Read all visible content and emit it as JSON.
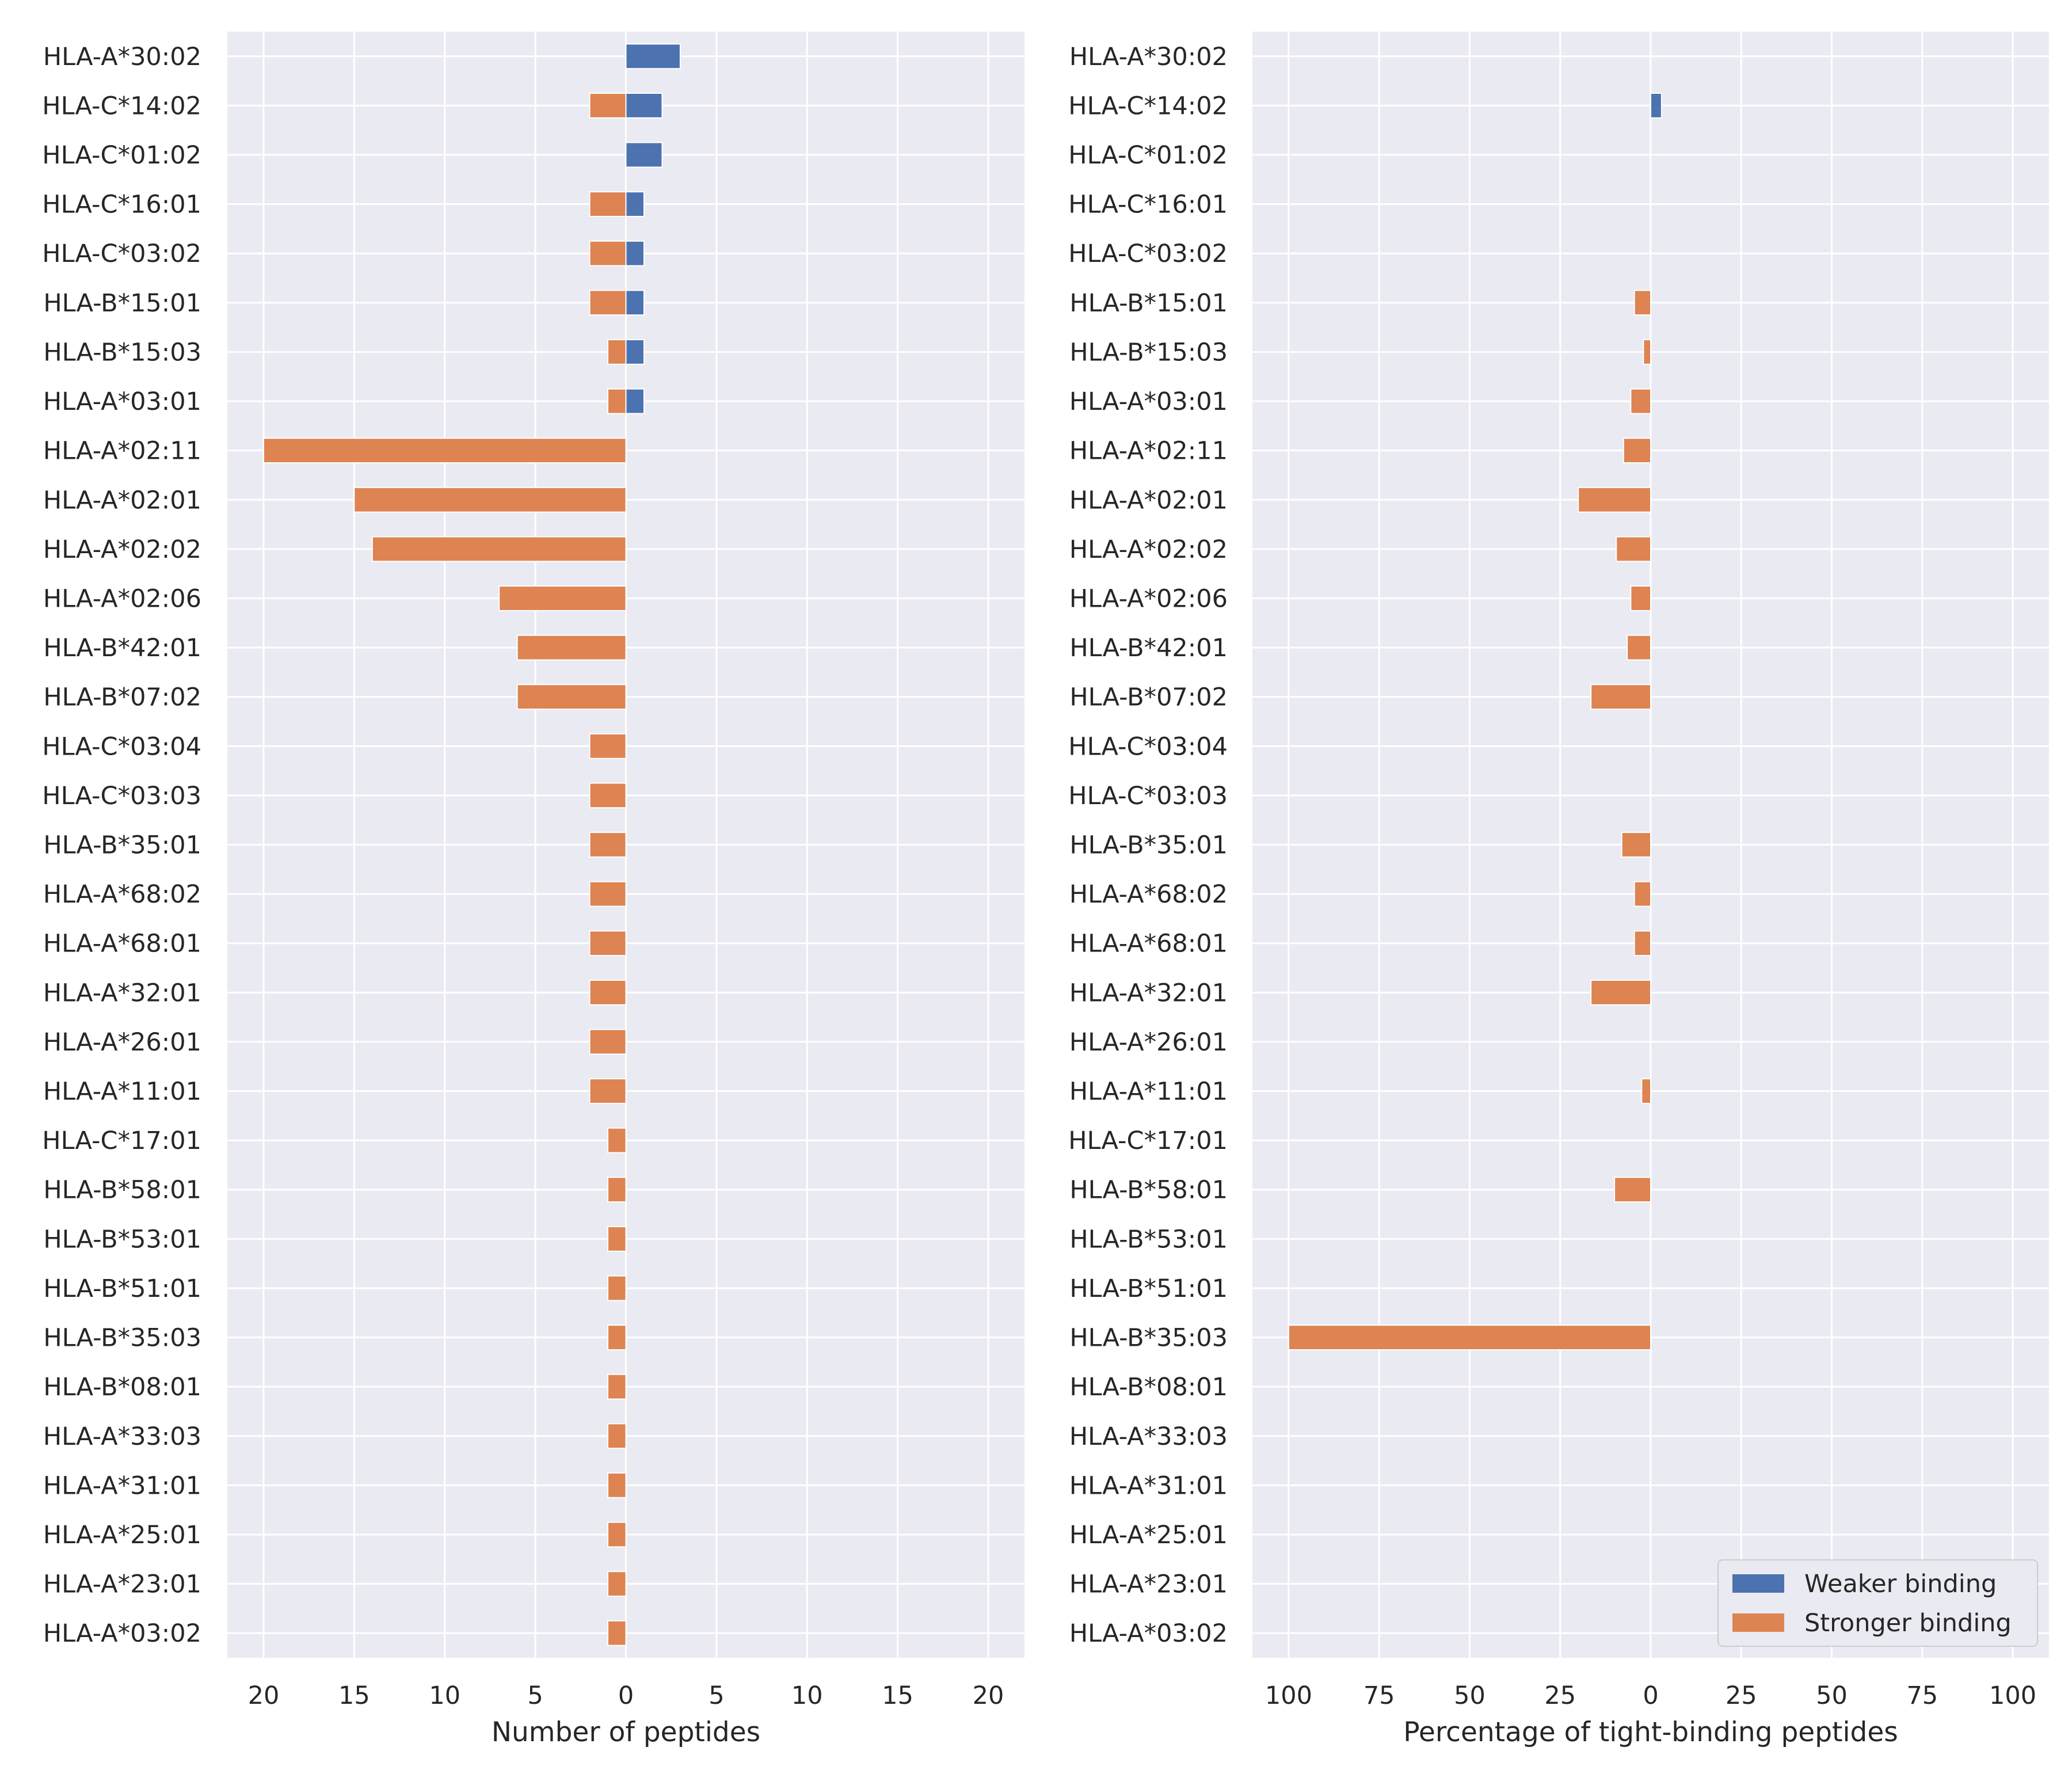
{
  "colors": {
    "weaker": "#4c72b0",
    "stronger": "#dd8452",
    "plot_background": "#eaeaf2",
    "grid": "#ffffff",
    "text": "#262626"
  },
  "legend": {
    "weaker_label": "Weaker binding",
    "stronger_label": "Stronger binding",
    "placement": "lower-right of right panel"
  },
  "chart_data": [
    {
      "type": "bar",
      "orientation": "horizontal",
      "layout": "diverging (stronger binding plotted to the left of 0, weaker binding to the right; tick labels shown as absolute values)",
      "xlabel": "Number of peptides",
      "xlim": [
        -22,
        22
      ],
      "xticks": [
        -20,
        -15,
        -10,
        -5,
        0,
        5,
        10,
        15,
        20
      ],
      "xtick_labels": [
        "20",
        "15",
        "10",
        "5",
        "0",
        "5",
        "10",
        "15",
        "20"
      ],
      "grid": true,
      "categories": [
        "HLA-A*30:02",
        "HLA-C*14:02",
        "HLA-C*01:02",
        "HLA-C*16:01",
        "HLA-C*03:02",
        "HLA-B*15:01",
        "HLA-B*15:03",
        "HLA-A*03:01",
        "HLA-A*02:11",
        "HLA-A*02:01",
        "HLA-A*02:02",
        "HLA-A*02:06",
        "HLA-B*42:01",
        "HLA-B*07:02",
        "HLA-C*03:04",
        "HLA-C*03:03",
        "HLA-B*35:01",
        "HLA-A*68:02",
        "HLA-A*68:01",
        "HLA-A*32:01",
        "HLA-A*26:01",
        "HLA-A*11:01",
        "HLA-C*17:01",
        "HLA-B*58:01",
        "HLA-B*53:01",
        "HLA-B*51:01",
        "HLA-B*35:03",
        "HLA-B*08:01",
        "HLA-A*33:03",
        "HLA-A*31:01",
        "HLA-A*25:01",
        "HLA-A*23:01",
        "HLA-A*03:02"
      ],
      "series": [
        {
          "name": "Weaker binding",
          "values": [
            3,
            2,
            2,
            1,
            1,
            1,
            1,
            1,
            0,
            0,
            0,
            0,
            0,
            0,
            0,
            0,
            0,
            0,
            0,
            0,
            0,
            0,
            0,
            0,
            0,
            0,
            0,
            0,
            0,
            0,
            0,
            0,
            0
          ]
        },
        {
          "name": "Stronger binding",
          "values": [
            0,
            2,
            0,
            2,
            2,
            2,
            1,
            1,
            20,
            15,
            14,
            7,
            6,
            6,
            2,
            2,
            2,
            2,
            2,
            2,
            2,
            2,
            1,
            1,
            1,
            1,
            1,
            1,
            1,
            1,
            1,
            1,
            1
          ]
        }
      ]
    },
    {
      "type": "bar",
      "orientation": "horizontal",
      "layout": "diverging (stronger binding plotted to the left of 0, weaker binding to the right; tick labels shown as absolute values)",
      "xlabel": "Percentage of tight-binding peptides",
      "xlim": [
        -110,
        110
      ],
      "xticks": [
        -100,
        -75,
        -50,
        -25,
        0,
        25,
        50,
        75,
        100
      ],
      "xtick_labels": [
        "100",
        "75",
        "50",
        "25",
        "0",
        "25",
        "50",
        "75",
        "100"
      ],
      "grid": true,
      "categories": [
        "HLA-A*30:02",
        "HLA-C*14:02",
        "HLA-C*01:02",
        "HLA-C*16:01",
        "HLA-C*03:02",
        "HLA-B*15:01",
        "HLA-B*15:03",
        "HLA-A*03:01",
        "HLA-A*02:11",
        "HLA-A*02:01",
        "HLA-A*02:02",
        "HLA-A*02:06",
        "HLA-B*42:01",
        "HLA-B*07:02",
        "HLA-C*03:04",
        "HLA-C*03:03",
        "HLA-B*35:01",
        "HLA-A*68:02",
        "HLA-A*68:01",
        "HLA-A*32:01",
        "HLA-A*26:01",
        "HLA-A*11:01",
        "HLA-C*17:01",
        "HLA-B*58:01",
        "HLA-B*53:01",
        "HLA-B*51:01",
        "HLA-B*35:03",
        "HLA-B*08:01",
        "HLA-A*33:03",
        "HLA-A*31:01",
        "HLA-A*25:01",
        "HLA-A*23:01",
        "HLA-A*03:02"
      ],
      "series": [
        {
          "name": "Weaker binding",
          "values": [
            0,
            3,
            0,
            0,
            0,
            0,
            0,
            0,
            0,
            0,
            0,
            0,
            0,
            0,
            0,
            0,
            0,
            0,
            0,
            0,
            0,
            0,
            0,
            0,
            0,
            0,
            0,
            0,
            0,
            0,
            0,
            0,
            0
          ]
        },
        {
          "name": "Stronger binding",
          "values": [
            0,
            0,
            0,
            0,
            0,
            4.5,
            2,
            5.5,
            7.5,
            20,
            9.5,
            5.5,
            6.5,
            16.5,
            0,
            0,
            8,
            4.5,
            4.5,
            16.5,
            0,
            2.5,
            0,
            10,
            0,
            0,
            100,
            0,
            0,
            0,
            0,
            0,
            0
          ]
        }
      ]
    }
  ]
}
